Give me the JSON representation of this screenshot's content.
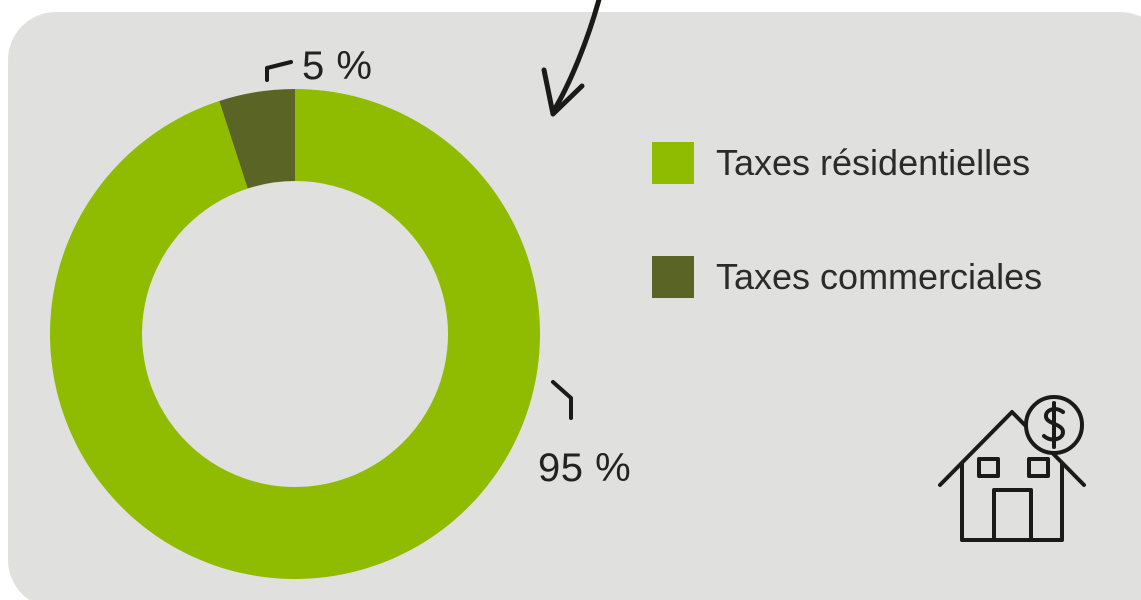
{
  "chart_data": {
    "type": "pie",
    "donut": true,
    "categories": [
      "Taxes résidentielles",
      "Taxes commerciales"
    ],
    "values": [
      95,
      5
    ],
    "value_labels": [
      "95 %",
      "5 %"
    ],
    "colors": [
      "#8fbc00",
      "#5a6424"
    ],
    "legend_position": "right"
  },
  "colors": {
    "background": "#e0e0df",
    "ink": "#1a1a1a"
  },
  "icons": {
    "arrow": "hand-drawn-arrow-icon",
    "house": "house-dollar-icon"
  }
}
